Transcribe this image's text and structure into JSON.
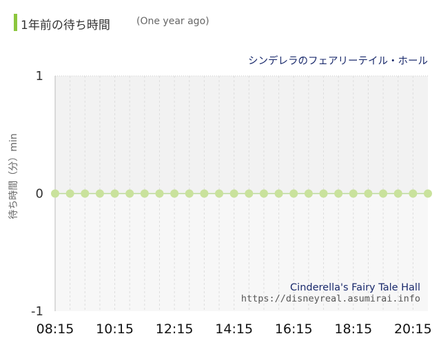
{
  "header": {
    "title": "1年前の待ち時間",
    "subtitle": "(One year ago)"
  },
  "colors": {
    "accent": "#8cc63e",
    "point": "#c9e29c",
    "zero_line": "#bcd99a",
    "plot_upper_bg": "#f2f2f2",
    "plot_lower_bg": "#f7f7f7"
  },
  "chart_data": {
    "type": "scatter",
    "attraction_label": "シンデレラのフェアリーテイル・ホール",
    "watermark_name": "Cinderella's Fairy Tale Hall",
    "watermark_url": "https://disneyreal.asumirai.info",
    "ylabel": "待ち時間（分）min",
    "ylim": [
      -1,
      1
    ],
    "yticks": [
      "1",
      "0",
      "-1"
    ],
    "xlim": [
      "08:15",
      "20:45"
    ],
    "xticks": [
      "08:15",
      "10:15",
      "12:15",
      "14:15",
      "16:15",
      "18:15",
      "20:15"
    ],
    "grid": "vertical dashed every 30 minutes",
    "series": [
      {
        "x": [
          "08:15",
          "08:45",
          "09:15",
          "09:45",
          "10:15",
          "10:45",
          "11:15",
          "11:45",
          "12:15",
          "12:45",
          "13:15",
          "13:45",
          "14:15",
          "14:45",
          "15:15",
          "15:45",
          "16:15",
          "16:45",
          "17:15",
          "17:45",
          "18:15",
          "18:45",
          "19:15",
          "19:45",
          "20:15",
          "20:45"
        ],
        "y": [
          0,
          0,
          0,
          0,
          0,
          0,
          0,
          0,
          0,
          0,
          0,
          0,
          0,
          0,
          0,
          0,
          0,
          0,
          0,
          0,
          0,
          0,
          0,
          0,
          0,
          0
        ]
      }
    ]
  }
}
